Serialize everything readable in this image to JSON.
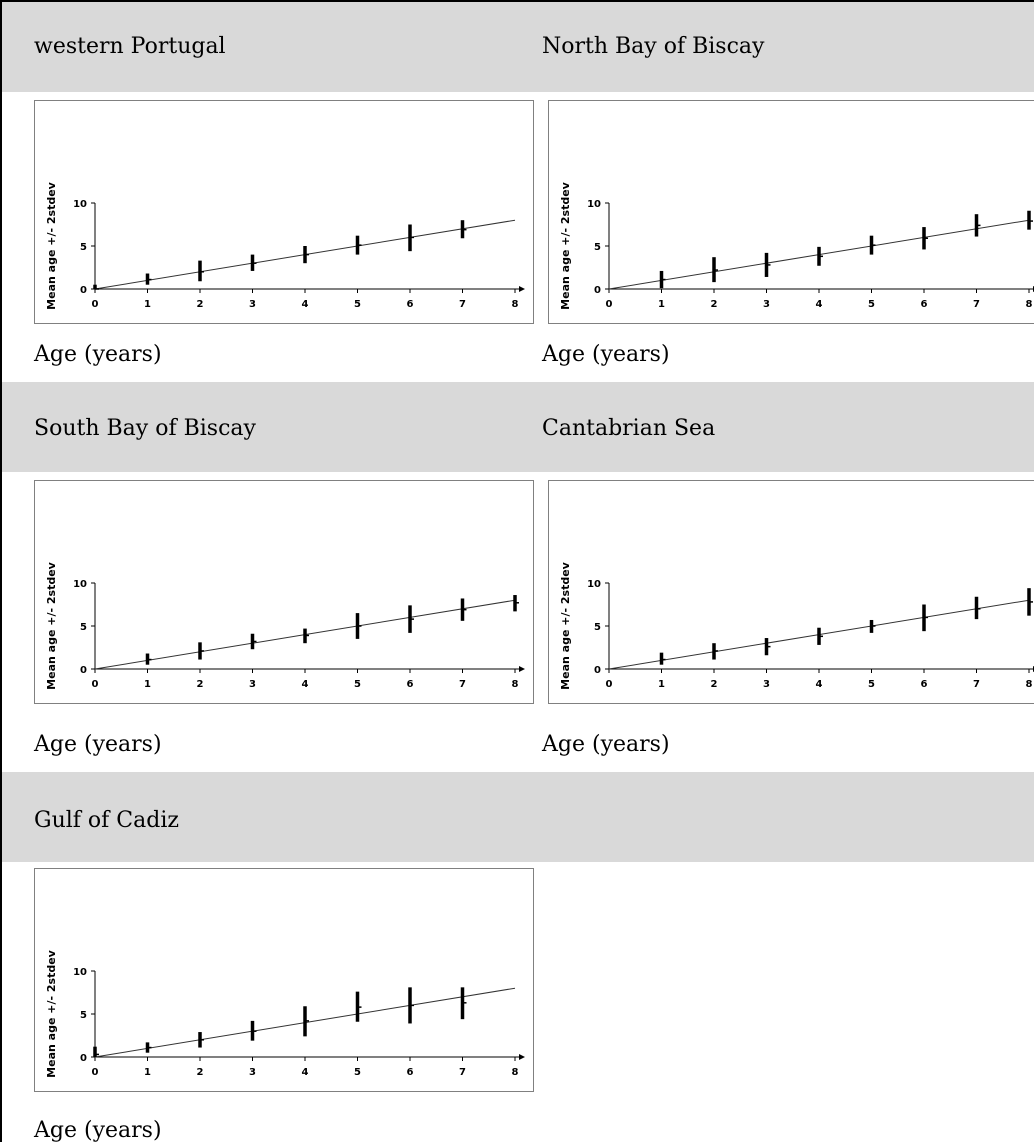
{
  "chart_data": [
    {
      "type": "error-bar",
      "title": "western Portugal",
      "xlabel": "Age (years)",
      "ylabel": "Mean age +/- 2stdev",
      "xlim": [
        0,
        8
      ],
      "ylim": [
        0,
        10
      ],
      "x_ticks": [
        0,
        1,
        2,
        3,
        4,
        5,
        6,
        7,
        8
      ],
      "y_ticks": [
        0,
        5,
        10
      ],
      "reference_line": {
        "x": [
          0,
          8
        ],
        "y": [
          0,
          8
        ]
      },
      "points": [
        {
          "x": 0,
          "mean": 0.0,
          "low": 0.0,
          "high": 0.5
        },
        {
          "x": 1,
          "mean": 1.1,
          "low": 0.5,
          "high": 1.8
        },
        {
          "x": 2,
          "mean": 2.0,
          "low": 0.9,
          "high": 3.3
        },
        {
          "x": 3,
          "mean": 3.0,
          "low": 2.1,
          "high": 4.0
        },
        {
          "x": 4,
          "mean": 4.0,
          "low": 3.0,
          "high": 5.0
        },
        {
          "x": 5,
          "mean": 5.1,
          "low": 4.0,
          "high": 6.2
        },
        {
          "x": 6,
          "mean": 6.0,
          "low": 4.4,
          "high": 7.5
        },
        {
          "x": 7,
          "mean": 6.9,
          "low": 5.9,
          "high": 8.0
        }
      ]
    },
    {
      "type": "error-bar",
      "title": "North Bay of Biscay",
      "xlabel": "Age (years)",
      "ylabel": "Mean age +/- 2stdev",
      "xlim": [
        0,
        8
      ],
      "ylim": [
        0,
        10
      ],
      "x_ticks": [
        0,
        1,
        2,
        3,
        4,
        5,
        6,
        7,
        8
      ],
      "y_ticks": [
        0,
        5,
        10
      ],
      "reference_line": {
        "x": [
          0,
          8
        ],
        "y": [
          0,
          8
        ]
      },
      "points": [
        {
          "x": 1,
          "mean": 1.1,
          "low": 0.1,
          "high": 2.1
        },
        {
          "x": 2,
          "mean": 2.2,
          "low": 0.8,
          "high": 3.7
        },
        {
          "x": 3,
          "mean": 2.8,
          "low": 1.4,
          "high": 4.2
        },
        {
          "x": 4,
          "mean": 3.8,
          "low": 2.7,
          "high": 4.9
        },
        {
          "x": 5,
          "mean": 5.1,
          "low": 4.0,
          "high": 6.2
        },
        {
          "x": 6,
          "mean": 5.9,
          "low": 4.6,
          "high": 7.2
        },
        {
          "x": 7,
          "mean": 7.4,
          "low": 6.1,
          "high": 8.7
        },
        {
          "x": 8,
          "mean": 7.9,
          "low": 6.9,
          "high": 9.1
        }
      ]
    },
    {
      "type": "error-bar",
      "title": "South Bay of Biscay",
      "xlabel": "Age (years)",
      "ylabel": "Mean age +/- 2stdev",
      "xlim": [
        0,
        8
      ],
      "ylim": [
        0,
        10
      ],
      "x_ticks": [
        0,
        1,
        2,
        3,
        4,
        5,
        6,
        7,
        8
      ],
      "y_ticks": [
        0,
        5,
        10
      ],
      "reference_line": {
        "x": [
          0,
          8
        ],
        "y": [
          0,
          8
        ]
      },
      "points": [
        {
          "x": 1,
          "mean": 1.1,
          "low": 0.5,
          "high": 1.8
        },
        {
          "x": 2,
          "mean": 2.1,
          "low": 1.1,
          "high": 3.1
        },
        {
          "x": 3,
          "mean": 3.2,
          "low": 2.3,
          "high": 4.1
        },
        {
          "x": 4,
          "mean": 3.9,
          "low": 3.0,
          "high": 4.7
        },
        {
          "x": 5,
          "mean": 5.0,
          "low": 3.5,
          "high": 6.5
        },
        {
          "x": 6,
          "mean": 5.8,
          "low": 4.2,
          "high": 7.4
        },
        {
          "x": 7,
          "mean": 6.9,
          "low": 5.6,
          "high": 8.2
        },
        {
          "x": 8,
          "mean": 7.7,
          "low": 6.7,
          "high": 8.6
        }
      ]
    },
    {
      "type": "error-bar",
      "title": "Cantabrian Sea",
      "xlabel": "Age (years)",
      "ylabel": "Mean age +/- 2stdev",
      "xlim": [
        0,
        8
      ],
      "ylim": [
        0,
        10
      ],
      "x_ticks": [
        0,
        1,
        2,
        3,
        4,
        5,
        6,
        7,
        8
      ],
      "y_ticks": [
        0,
        5,
        10
      ],
      "reference_line": {
        "x": [
          0,
          8
        ],
        "y": [
          0,
          8
        ]
      },
      "points": [
        {
          "x": 1,
          "mean": 1.1,
          "low": 0.5,
          "high": 1.9
        },
        {
          "x": 2,
          "mean": 2.1,
          "low": 1.1,
          "high": 3.0
        },
        {
          "x": 3,
          "mean": 2.6,
          "low": 1.6,
          "high": 3.6
        },
        {
          "x": 4,
          "mean": 3.8,
          "low": 2.8,
          "high": 4.8
        },
        {
          "x": 5,
          "mean": 5.0,
          "low": 4.2,
          "high": 5.7
        },
        {
          "x": 6,
          "mean": 6.0,
          "low": 4.4,
          "high": 7.5
        },
        {
          "x": 7,
          "mean": 7.0,
          "low": 5.8,
          "high": 8.4
        },
        {
          "x": 8,
          "mean": 7.8,
          "low": 6.2,
          "high": 9.4
        }
      ]
    },
    {
      "type": "error-bar",
      "title": "Gulf of Cadiz",
      "xlabel": "Age (years)",
      "ylabel": "Mean age +/- 2stdev",
      "xlim": [
        0,
        8
      ],
      "ylim": [
        0,
        10
      ],
      "x_ticks": [
        0,
        1,
        2,
        3,
        4,
        5,
        6,
        7,
        8
      ],
      "y_ticks": [
        0,
        5,
        10
      ],
      "reference_line": {
        "x": [
          0,
          8
        ],
        "y": [
          0,
          8
        ]
      },
      "points": [
        {
          "x": 0,
          "mean": 0.3,
          "low": 0.0,
          "high": 1.2
        },
        {
          "x": 1,
          "mean": 1.1,
          "low": 0.5,
          "high": 1.7
        },
        {
          "x": 2,
          "mean": 2.0,
          "low": 1.1,
          "high": 2.9
        },
        {
          "x": 3,
          "mean": 3.0,
          "low": 1.9,
          "high": 4.2
        },
        {
          "x": 4,
          "mean": 4.2,
          "low": 2.4,
          "high": 5.9
        },
        {
          "x": 5,
          "mean": 5.8,
          "low": 4.1,
          "high": 7.6
        },
        {
          "x": 6,
          "mean": 6.0,
          "low": 3.9,
          "high": 8.1
        },
        {
          "x": 7,
          "mean": 6.3,
          "low": 4.4,
          "high": 8.1
        }
      ]
    }
  ]
}
